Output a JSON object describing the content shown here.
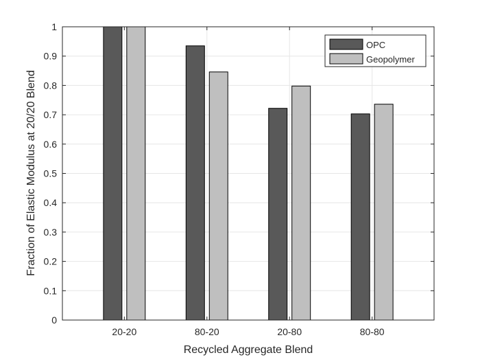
{
  "chart_data": {
    "type": "bar",
    "title": "",
    "xlabel": "Recycled Aggregate Blend",
    "ylabel": "Fraction of Elastic Modulus at 20/20 Blend",
    "categories": [
      "20-20",
      "80-20",
      "20-80",
      "80-80"
    ],
    "series": [
      {
        "name": "OPC",
        "color": "#595959",
        "values": [
          1.0,
          0.935,
          0.722,
          0.703
        ]
      },
      {
        "name": "Geopolymer",
        "color": "#bfbfbf",
        "values": [
          1.0,
          0.846,
          0.798,
          0.736
        ]
      }
    ],
    "ylim": [
      0,
      1
    ],
    "yticks": [
      "0",
      "0.1",
      "0.2",
      "0.3",
      "0.4",
      "0.5",
      "0.6",
      "0.7",
      "0.8",
      "0.9",
      "1"
    ],
    "grid": true,
    "legend_position": "top-right",
    "colors": {
      "axis": "#262626",
      "grid": "#e6e6e6",
      "bar_edge": "#000000"
    }
  }
}
